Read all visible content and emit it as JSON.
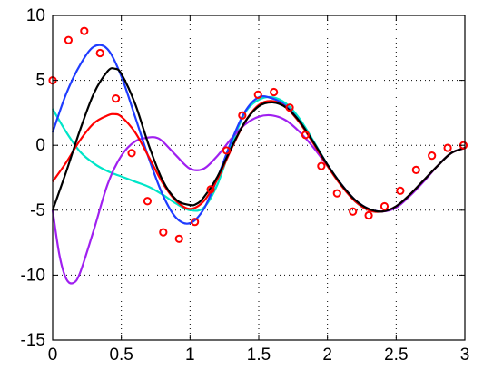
{
  "chart_data": {
    "type": "line",
    "title": "",
    "xlabel": "",
    "ylabel": "",
    "xlim": [
      0,
      3
    ],
    "ylim": [
      -15,
      10
    ],
    "grid": true,
    "grid_style": "dotted",
    "xticks": [
      "0",
      "0.5",
      "1",
      "1.5",
      "2",
      "2.5",
      "3"
    ],
    "xtick_values": [
      0,
      0.5,
      1,
      1.5,
      2,
      2.5,
      3
    ],
    "yticks": [
      "10",
      "5",
      "0",
      "-5",
      "-10",
      "-15"
    ],
    "ytick_values": [
      10,
      5,
      0,
      -5,
      -10,
      -15
    ],
    "series": [
      {
        "color": "#00e5c8",
        "kind": "line",
        "x": [
          0,
          0.1,
          0.2,
          0.3,
          0.4,
          0.5,
          0.6,
          0.7,
          0.8,
          0.9,
          1.0,
          1.1,
          1.2,
          1.3,
          1.4,
          1.5,
          1.6,
          1.7,
          1.8,
          1.9,
          2.0,
          2.1,
          2.2,
          2.3,
          2.4,
          2.5,
          2.6,
          2.7,
          2.8,
          2.9,
          3.0
        ],
        "y": [
          2.8,
          1.0,
          -0.5,
          -1.4,
          -2.0,
          -2.4,
          -2.8,
          -3.2,
          -3.8,
          -4.5,
          -5.0,
          -4.8,
          -3.0,
          0.0,
          2.5,
          3.5,
          3.7,
          3.2,
          2.0,
          0.3,
          -1.5,
          -3.0,
          -4.3,
          -5.0,
          -5.1,
          -4.7,
          -3.8,
          -2.7,
          -1.6,
          -0.6,
          -0.2
        ]
      },
      {
        "color": "#a020f0",
        "kind": "line",
        "x": [
          0,
          0.05,
          0.1,
          0.15,
          0.2,
          0.3,
          0.4,
          0.5,
          0.6,
          0.7,
          0.75,
          0.8,
          0.9,
          1.0,
          1.1,
          1.2,
          1.3,
          1.4,
          1.5,
          1.6,
          1.7,
          1.8,
          1.9,
          2.0,
          2.1,
          2.2,
          2.3,
          2.4,
          2.5,
          2.6,
          2.7,
          2.8,
          2.9,
          3.0
        ],
        "y": [
          -5.0,
          -8.5,
          -10.3,
          -10.6,
          -9.8,
          -6.5,
          -3.0,
          -0.8,
          0.3,
          0.6,
          0.6,
          0.3,
          -0.8,
          -1.8,
          -1.8,
          -0.8,
          0.5,
          1.6,
          2.2,
          2.3,
          1.9,
          1.0,
          -0.2,
          -1.6,
          -3.0,
          -4.2,
          -4.9,
          -5.1,
          -4.8,
          -3.9,
          -2.8,
          -1.6,
          -0.6,
          -0.2
        ]
      },
      {
        "color": "#1f3cff",
        "kind": "line",
        "x": [
          0,
          0.1,
          0.2,
          0.3,
          0.4,
          0.5,
          0.6,
          0.7,
          0.8,
          0.9,
          1.0,
          1.1,
          1.2,
          1.3,
          1.4,
          1.5,
          1.6,
          1.7,
          1.8,
          1.9,
          2.0,
          2.1,
          2.2,
          2.3,
          2.4,
          2.5,
          2.6,
          2.7,
          2.8,
          2.9,
          3.0
        ],
        "y": [
          1.0,
          4.0,
          6.2,
          7.6,
          7.4,
          5.3,
          2.2,
          -1.0,
          -3.8,
          -5.6,
          -6.0,
          -4.9,
          -2.5,
          0.3,
          2.6,
          3.7,
          3.6,
          3.0,
          1.8,
          0.2,
          -1.5,
          -3.0,
          -4.2,
          -4.9,
          -5.1,
          -4.7,
          -3.8,
          -2.7,
          -1.6,
          -0.6,
          -0.2
        ]
      },
      {
        "color": "#ff0000",
        "kind": "line",
        "x": [
          0,
          0.1,
          0.2,
          0.3,
          0.4,
          0.45,
          0.5,
          0.6,
          0.7,
          0.8,
          0.9,
          1.0,
          1.1,
          1.2,
          1.3,
          1.4,
          1.5,
          1.6,
          1.7,
          1.8,
          1.9,
          2.0,
          2.1,
          2.2,
          2.3,
          2.4,
          2.5,
          2.6,
          2.7,
          2.8,
          2.9,
          3.0
        ],
        "y": [
          -2.8,
          -1.3,
          0.4,
          1.7,
          2.3,
          2.4,
          2.2,
          1.0,
          -0.9,
          -2.9,
          -4.3,
          -4.9,
          -4.3,
          -2.6,
          -0.3,
          1.8,
          3.1,
          3.4,
          2.9,
          1.7,
          0.1,
          -1.6,
          -3.1,
          -4.3,
          -5.0,
          -5.1,
          -4.7,
          -3.8,
          -2.7,
          -1.6,
          -0.6,
          -0.2
        ]
      },
      {
        "color": "#000000",
        "kind": "line",
        "x": [
          0,
          0.1,
          0.2,
          0.3,
          0.4,
          0.45,
          0.5,
          0.6,
          0.7,
          0.8,
          0.9,
          1.0,
          1.05,
          1.1,
          1.2,
          1.3,
          1.4,
          1.5,
          1.6,
          1.7,
          1.8,
          1.9,
          2.0,
          2.1,
          2.2,
          2.3,
          2.4,
          2.5,
          2.6,
          2.7,
          2.8,
          2.9,
          3.0
        ],
        "y": [
          -5.0,
          -2.0,
          1.2,
          4.0,
          5.7,
          5.9,
          5.5,
          3.2,
          0.0,
          -2.7,
          -4.2,
          -4.6,
          -4.5,
          -4.0,
          -2.4,
          -0.2,
          1.8,
          3.0,
          3.3,
          2.9,
          1.8,
          0.2,
          -1.5,
          -3.0,
          -4.2,
          -4.9,
          -5.1,
          -4.7,
          -3.8,
          -2.7,
          -1.6,
          -0.6,
          -0.2
        ]
      },
      {
        "color": "#ff0000",
        "kind": "scatter",
        "marker": "circle-open",
        "x": [
          0.0,
          0.115,
          0.23,
          0.345,
          0.46,
          0.575,
          0.69,
          0.805,
          0.92,
          1.035,
          1.15,
          1.265,
          1.38,
          1.495,
          1.61,
          1.725,
          1.84,
          1.955,
          2.07,
          2.185,
          2.3,
          2.415,
          2.53,
          2.645,
          2.76,
          2.875,
          2.99
        ],
        "y": [
          5.0,
          8.1,
          8.8,
          7.1,
          3.6,
          -0.6,
          -4.3,
          -6.7,
          -7.2,
          -5.9,
          -3.4,
          -0.4,
          2.3,
          3.9,
          4.1,
          2.9,
          0.8,
          -1.6,
          -3.7,
          -5.1,
          -5.4,
          -4.7,
          -3.5,
          -1.9,
          -0.8,
          -0.2,
          0.0
        ]
      }
    ]
  }
}
